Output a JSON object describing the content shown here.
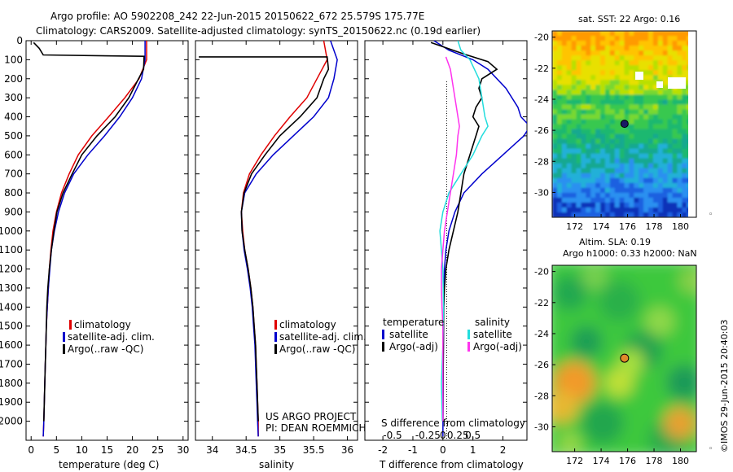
{
  "header": {
    "line1": "Argo profile: AO 5902208_242 22-Jun-2015 20150622_672 25.579S 175.77E",
    "line2": "Climatology: CARS2009. Satellite-adjusted climatology: synTS_20150622.nc (0.19d earlier)"
  },
  "colors": {
    "climatology": "#e00000",
    "satellite": "#0000cc",
    "argo": "#000000",
    "salinity_satellite": "#22dddd",
    "salinity_argo": "#ff33ee",
    "marker_sst": "#1a1a66",
    "marker_sla": "#e08a2a"
  },
  "credits": {
    "project": "US ARGO PROJECT",
    "pi": "PI: DEAN ROEMMICH",
    "imos": "©IMOS 29-Jun-2015 20:40:03"
  },
  "chart_data": [
    {
      "id": "temperature",
      "type": "line",
      "xlabel": "temperature (deg C)",
      "ylabel": "",
      "xlim": [
        -1,
        31
      ],
      "ylim": [
        2100,
        0
      ],
      "xticks": [
        0,
        5,
        10,
        15,
        20,
        25,
        30
      ],
      "yticks": [
        0,
        100,
        200,
        300,
        400,
        500,
        600,
        700,
        800,
        900,
        1000,
        1100,
        1200,
        1300,
        1400,
        1500,
        1600,
        1700,
        1800,
        1900,
        2000
      ],
      "legend": [
        "climatology",
        "satellite-adj. clim.",
        "Argo(..raw -QC)"
      ],
      "series": [
        {
          "name": "climatology",
          "color": "#e00000",
          "points": [
            [
              22.8,
              0
            ],
            [
              22.8,
              100
            ],
            [
              21.3,
              200
            ],
            [
              18.5,
              300
            ],
            [
              15.3,
              400
            ],
            [
              12.0,
              500
            ],
            [
              9.3,
              600
            ],
            [
              7.5,
              700
            ],
            [
              6.0,
              800
            ],
            [
              5.0,
              900
            ],
            [
              4.3,
              1000
            ],
            [
              3.9,
              1100
            ],
            [
              3.6,
              1200
            ],
            [
              3.4,
              1300
            ],
            [
              3.2,
              1400
            ],
            [
              3.0,
              1500
            ],
            [
              2.9,
              1600
            ],
            [
              2.8,
              1700
            ],
            [
              2.7,
              1800
            ],
            [
              2.6,
              1900
            ],
            [
              2.5,
              2000
            ],
            [
              2.4,
              2080
            ]
          ]
        },
        {
          "name": "satellite-adj. clim.",
          "color": "#0000cc",
          "points": [
            [
              22.5,
              0
            ],
            [
              22.5,
              100
            ],
            [
              21.8,
              200
            ],
            [
              20.0,
              300
            ],
            [
              17.5,
              400
            ],
            [
              14.5,
              500
            ],
            [
              11.2,
              600
            ],
            [
              8.4,
              700
            ],
            [
              6.6,
              800
            ],
            [
              5.4,
              900
            ],
            [
              4.6,
              1000
            ],
            [
              4.0,
              1100
            ],
            [
              3.7,
              1200
            ],
            [
              3.4,
              1300
            ],
            [
              3.2,
              1400
            ],
            [
              3.0,
              1500
            ],
            [
              2.9,
              1600
            ],
            [
              2.8,
              1700
            ],
            [
              2.7,
              1800
            ],
            [
              2.6,
              1900
            ],
            [
              2.5,
              2000
            ],
            [
              2.4,
              2080
            ]
          ]
        },
        {
          "name": "Argo(..raw -QC)",
          "color": "#000000",
          "points": [
            [
              0.5,
              10
            ],
            [
              1.6,
              40
            ],
            [
              2.4,
              75
            ],
            [
              22.3,
              82
            ],
            [
              22.2,
              150
            ],
            [
              21.2,
              200
            ],
            [
              19.3,
              300
            ],
            [
              16.6,
              400
            ],
            [
              13.0,
              500
            ],
            [
              10.0,
              600
            ],
            [
              8.1,
              700
            ],
            [
              6.3,
              800
            ],
            [
              5.1,
              900
            ],
            [
              4.5,
              1000
            ],
            [
              4.0,
              1100
            ],
            [
              3.6,
              1200
            ],
            [
              3.3,
              1300
            ],
            [
              3.1,
              1400
            ],
            [
              3.0,
              1500
            ],
            [
              2.9,
              1600
            ],
            [
              2.8,
              1700
            ],
            [
              2.7,
              1800
            ],
            [
              2.6,
              1900
            ],
            [
              2.5,
              2000
            ]
          ]
        }
      ]
    },
    {
      "id": "salinity",
      "type": "line",
      "xlabel": "salinity",
      "ylabel": "",
      "xlim": [
        33.75,
        36.15
      ],
      "ylim": [
        2100,
        0
      ],
      "xticks": [
        34,
        34.5,
        35,
        35.5,
        36
      ],
      "legend": [
        "climatology",
        "satellite-adj. clim.",
        "Argo(..raw -QC)"
      ],
      "series": [
        {
          "name": "climatology",
          "color": "#e00000",
          "points": [
            [
              35.65,
              0
            ],
            [
              35.7,
              100
            ],
            [
              35.55,
              200
            ],
            [
              35.4,
              300
            ],
            [
              35.15,
              400
            ],
            [
              34.92,
              500
            ],
            [
              34.72,
              600
            ],
            [
              34.55,
              700
            ],
            [
              34.46,
              800
            ],
            [
              34.43,
              900
            ],
            [
              34.45,
              1000
            ],
            [
              34.48,
              1100
            ],
            [
              34.53,
              1200
            ],
            [
              34.57,
              1300
            ],
            [
              34.6,
              1400
            ],
            [
              34.62,
              1500
            ],
            [
              34.64,
              1600
            ],
            [
              34.65,
              1700
            ],
            [
              34.66,
              1800
            ],
            [
              34.67,
              1900
            ],
            [
              34.68,
              2000
            ],
            [
              34.68,
              2080
            ]
          ]
        },
        {
          "name": "satellite-adj. clim.",
          "color": "#0000cc",
          "points": [
            [
              35.75,
              0
            ],
            [
              35.85,
              100
            ],
            [
              35.8,
              200
            ],
            [
              35.72,
              300
            ],
            [
              35.5,
              400
            ],
            [
              35.2,
              500
            ],
            [
              34.9,
              600
            ],
            [
              34.65,
              700
            ],
            [
              34.48,
              800
            ],
            [
              34.43,
              900
            ],
            [
              34.44,
              1000
            ],
            [
              34.47,
              1100
            ],
            [
              34.52,
              1200
            ],
            [
              34.56,
              1300
            ],
            [
              34.59,
              1400
            ],
            [
              34.61,
              1500
            ],
            [
              34.63,
              1600
            ],
            [
              34.64,
              1700
            ],
            [
              34.65,
              1800
            ],
            [
              34.66,
              1900
            ],
            [
              34.67,
              2000
            ],
            [
              34.68,
              2080
            ]
          ]
        },
        {
          "name": "Argo(..raw -QC)",
          "color": "#000000",
          "points": [
            [
              33.8,
              85
            ],
            [
              35.7,
              85
            ],
            [
              35.72,
              150
            ],
            [
              35.65,
              200
            ],
            [
              35.55,
              300
            ],
            [
              35.3,
              400
            ],
            [
              35.0,
              500
            ],
            [
              34.78,
              600
            ],
            [
              34.58,
              700
            ],
            [
              34.47,
              800
            ],
            [
              34.43,
              900
            ],
            [
              34.44,
              1000
            ],
            [
              34.48,
              1100
            ],
            [
              34.53,
              1200
            ],
            [
              34.57,
              1300
            ],
            [
              34.6,
              1400
            ],
            [
              34.62,
              1500
            ],
            [
              34.64,
              1600
            ],
            [
              34.65,
              1700
            ],
            [
              34.66,
              1800
            ],
            [
              34.67,
              1900
            ],
            [
              34.68,
              2000
            ]
          ]
        }
      ]
    },
    {
      "id": "differences",
      "type": "line",
      "xlabel": "T difference from climatology",
      "xlabel_top": "S difference from climatology",
      "xlim": [
        -2.6,
        2.8
      ],
      "ylim": [
        2100,
        0
      ],
      "xticks": [
        -2,
        -1,
        0,
        1,
        2
      ],
      "xticks_s": [
        "-0.5",
        "-0.25",
        "0",
        "0.25",
        "0.5"
      ],
      "legend": {
        "temperature_title": "temperature",
        "salinity_title": "salinity",
        "satellite": "satellite",
        "argo": "Argo(-adj)"
      },
      "series": [
        {
          "name": "satellite",
          "group": "temperature",
          "color": "#0000cc",
          "points": [
            [
              -0.3,
              0
            ],
            [
              0.2,
              50
            ],
            [
              1.0,
              100
            ],
            [
              1.5,
              150
            ],
            [
              2.1,
              250
            ],
            [
              2.5,
              350
            ],
            [
              2.6,
              400
            ],
            [
              2.9,
              450
            ],
            [
              2.7,
              500
            ],
            [
              2.0,
              600
            ],
            [
              1.3,
              700
            ],
            [
              0.7,
              800
            ],
            [
              0.4,
              900
            ],
            [
              0.2,
              1000
            ],
            [
              0.1,
              1100
            ],
            [
              0.05,
              1200
            ],
            [
              0.03,
              1300
            ],
            [
              0.02,
              1500
            ],
            [
              0.01,
              1800
            ],
            [
              0.0,
              2080
            ]
          ]
        },
        {
          "name": "Argo(-adj)",
          "group": "temperature",
          "color": "#000000",
          "points": [
            [
              -0.4,
              10
            ],
            [
              0.7,
              70
            ],
            [
              1.5,
              110
            ],
            [
              1.8,
              150
            ],
            [
              1.3,
              200
            ],
            [
              1.2,
              250
            ],
            [
              1.3,
              300
            ],
            [
              1.1,
              350
            ],
            [
              1.0,
              400
            ],
            [
              1.2,
              450
            ],
            [
              1.1,
              500
            ],
            [
              0.9,
              600
            ],
            [
              0.7,
              700
            ],
            [
              0.6,
              800
            ],
            [
              0.5,
              900
            ],
            [
              0.35,
              1000
            ],
            [
              0.2,
              1100
            ],
            [
              0.1,
              1200
            ],
            [
              0.05,
              1300
            ],
            [
              0.03,
              1400
            ],
            [
              0.02,
              1500
            ],
            [
              0.01,
              1700
            ],
            [
              0.0,
              2000
            ]
          ]
        },
        {
          "name": "satellite",
          "group": "salinity",
          "color": "#22dddd",
          "points": [
            [
              0.5,
              0
            ],
            [
              0.6,
              50
            ],
            [
              0.9,
              100
            ],
            [
              1.2,
              200
            ],
            [
              1.3,
              300
            ],
            [
              1.4,
              400
            ],
            [
              1.5,
              450
            ],
            [
              1.3,
              500
            ],
            [
              1.0,
              600
            ],
            [
              0.6,
              700
            ],
            [
              0.2,
              800
            ],
            [
              0.0,
              900
            ],
            [
              -0.1,
              1000
            ],
            [
              -0.05,
              1100
            ],
            [
              0.0,
              1200
            ],
            [
              0.02,
              1400
            ],
            [
              0.0,
              1600
            ],
            [
              -0.05,
              1800
            ],
            [
              -0.02,
              2000
            ]
          ]
        },
        {
          "name": "Argo(-adj)",
          "group": "salinity",
          "color": "#ff33ee",
          "points": [
            [
              0.1,
              85
            ],
            [
              0.25,
              150
            ],
            [
              0.35,
              250
            ],
            [
              0.45,
              350
            ],
            [
              0.55,
              450
            ],
            [
              0.5,
              500
            ],
            [
              0.45,
              600
            ],
            [
              0.35,
              700
            ],
            [
              0.25,
              800
            ],
            [
              0.15,
              900
            ],
            [
              0.05,
              1000
            ],
            [
              0.0,
              1100
            ],
            [
              -0.05,
              1200
            ],
            [
              -0.05,
              1300
            ],
            [
              -0.03,
              1400
            ],
            [
              0.0,
              1500
            ],
            [
              0.0,
              1700
            ],
            [
              0.0,
              2000
            ]
          ]
        }
      ]
    },
    {
      "id": "sst_map",
      "type": "heatmap",
      "title": "sat. SST: 22  Argo: 0.16",
      "xticks": [
        "172",
        "174",
        "176",
        "178",
        "180"
      ],
      "yticks": [
        "-20",
        "-22",
        "-24",
        "-26",
        "-28",
        "-30"
      ],
      "xlim": [
        170.3,
        181.2
      ],
      "ylim": [
        -31.6,
        -19.6
      ],
      "marker": {
        "lon": 175.77,
        "lat": -25.58
      }
    },
    {
      "id": "sla_map",
      "type": "heatmap",
      "title_line1": "Altim. SLA: 0.19",
      "title_line2": "Argo h1000: 0.33 h2000: NaN",
      "xticks": [
        "172",
        "174",
        "176",
        "178",
        "180"
      ],
      "yticks": [
        "-20",
        "-22",
        "-24",
        "-26",
        "-28",
        "-30"
      ],
      "xlim": [
        170.3,
        181.2
      ],
      "ylim": [
        -31.6,
        -19.6
      ],
      "marker": {
        "lon": 175.77,
        "lat": -25.58
      }
    }
  ]
}
